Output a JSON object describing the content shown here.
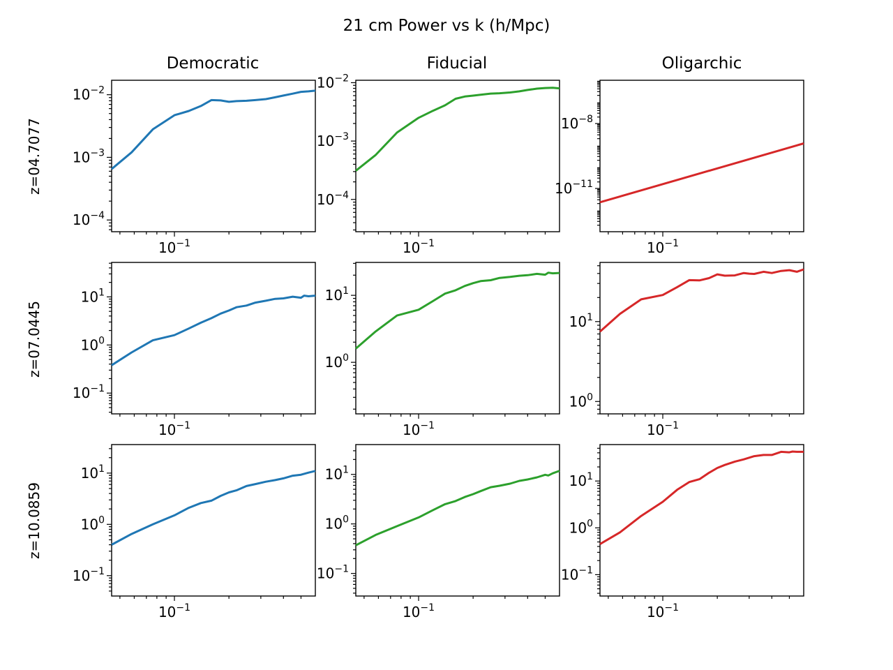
{
  "figure": {
    "title": "21 cm Power vs k (h/Mpc)",
    "columns": [
      "Democratic",
      "Fiducial",
      "Oligarchic"
    ],
    "rows": [
      "z=04.7077",
      "z=07.0445",
      "z=10.0859"
    ]
  },
  "chart_data": [
    {
      "type": "line",
      "panel": "Democratic / z=04.7077",
      "color": "#1f77b4",
      "xscale": "log",
      "yscale": "log",
      "xlim": [
        0.045,
        0.6
      ],
      "ylim": [
        6.5e-05,
        0.017
      ],
      "xticks": [
        {
          "value": 0.1,
          "label": "10^-1"
        }
      ],
      "yticks": [
        {
          "value": 0.0001,
          "label": "10^-4"
        },
        {
          "value": 0.001,
          "label": "10^-3"
        },
        {
          "value": 0.01,
          "label": "10^-2"
        }
      ],
      "x": [
        0.045,
        0.058,
        0.076,
        0.1,
        0.12,
        0.14,
        0.16,
        0.18,
        0.2,
        0.22,
        0.25,
        0.28,
        0.32,
        0.36,
        0.4,
        0.45,
        0.5,
        0.55,
        0.6
      ],
      "y": [
        0.00065,
        0.0012,
        0.0028,
        0.0047,
        0.0055,
        0.0066,
        0.0082,
        0.0081,
        0.0077,
        0.0079,
        0.008,
        0.0082,
        0.0085,
        0.0091,
        0.0097,
        0.0104,
        0.0111,
        0.0113,
        0.0116
      ]
    },
    {
      "type": "line",
      "panel": "Fiducial / z=04.7077",
      "color": "#2ca02c",
      "xscale": "log",
      "yscale": "log",
      "xlim": [
        0.045,
        0.6
      ],
      "ylim": [
        2.8e-05,
        0.011
      ],
      "xticks": [
        {
          "value": 0.1,
          "label": "10^-1"
        }
      ],
      "yticks": [
        {
          "value": 0.0001,
          "label": "10^-4"
        },
        {
          "value": 0.001,
          "label": "10^-3"
        },
        {
          "value": 0.01,
          "label": "10^-2"
        }
      ],
      "x": [
        0.045,
        0.058,
        0.076,
        0.1,
        0.12,
        0.14,
        0.16,
        0.18,
        0.2,
        0.22,
        0.25,
        0.28,
        0.32,
        0.36,
        0.4,
        0.45,
        0.5,
        0.55,
        0.6
      ],
      "y": [
        0.00031,
        0.00058,
        0.0014,
        0.0025,
        0.0033,
        0.0041,
        0.0053,
        0.0058,
        0.006,
        0.0062,
        0.0065,
        0.0066,
        0.0068,
        0.0071,
        0.0075,
        0.0079,
        0.0081,
        0.0082,
        0.008
      ]
    },
    {
      "type": "line",
      "panel": "Oligarchic / z=04.7077",
      "color": "#d62728",
      "xscale": "log",
      "yscale": "log",
      "xlim": [
        0.045,
        0.6
      ],
      "ylim": [
        1e-13,
        1e-06
      ],
      "xticks": [
        {
          "value": 0.1,
          "label": "10^-1"
        }
      ],
      "yticks": [
        {
          "value": 1e-11,
          "label": "10^-11"
        },
        {
          "value": 1e-08,
          "label": "10^-8"
        }
      ],
      "x": [
        0.045,
        0.6
      ],
      "y": [
        2.3e-12,
        1.2e-09
      ]
    },
    {
      "type": "line",
      "panel": "Democratic / z=07.0445",
      "color": "#1f77b4",
      "xscale": "log",
      "yscale": "log",
      "xlim": [
        0.045,
        0.6
      ],
      "ylim": [
        0.037,
        52
      ],
      "xticks": [
        {
          "value": 0.1,
          "label": "10^-1"
        }
      ],
      "yticks": [
        {
          "value": 0.1,
          "label": "10^-1"
        },
        {
          "value": 1,
          "label": "10^0"
        },
        {
          "value": 10,
          "label": "10^1"
        }
      ],
      "x": [
        0.045,
        0.058,
        0.076,
        0.1,
        0.12,
        0.14,
        0.16,
        0.18,
        0.2,
        0.22,
        0.25,
        0.28,
        0.32,
        0.36,
        0.4,
        0.45,
        0.5,
        0.52,
        0.55,
        0.6
      ],
      "y": [
        0.38,
        0.7,
        1.25,
        1.6,
        2.2,
        2.9,
        3.6,
        4.5,
        5.2,
        6.1,
        6.6,
        7.6,
        8.3,
        9.1,
        9.3,
        10.1,
        9.6,
        10.6,
        10.3,
        10.6
      ]
    },
    {
      "type": "line",
      "panel": "Fiducial / z=07.0445",
      "color": "#2ca02c",
      "xscale": "log",
      "yscale": "log",
      "xlim": [
        0.045,
        0.6
      ],
      "ylim": [
        0.17,
        31
      ],
      "xticks": [
        {
          "value": 0.1,
          "label": "10^-1"
        }
      ],
      "yticks": [
        {
          "value": 1,
          "label": "10^0"
        },
        {
          "value": 10,
          "label": "10^1"
        }
      ],
      "x": [
        0.045,
        0.058,
        0.076,
        0.1,
        0.12,
        0.14,
        0.16,
        0.18,
        0.2,
        0.22,
        0.25,
        0.28,
        0.32,
        0.36,
        0.4,
        0.45,
        0.5,
        0.52,
        0.55,
        0.6
      ],
      "y": [
        1.6,
        2.9,
        5.0,
        6.1,
        8.2,
        10.6,
        11.9,
        13.8,
        15.2,
        16.3,
        16.8,
        18.2,
        18.8,
        19.6,
        20.0,
        20.9,
        20.3,
        21.8,
        21.3,
        21.6
      ]
    },
    {
      "type": "line",
      "panel": "Oligarchic / z=07.0445",
      "color": "#d62728",
      "xscale": "log",
      "yscale": "log",
      "xlim": [
        0.045,
        0.6
      ],
      "ylim": [
        0.7,
        55
      ],
      "xticks": [
        {
          "value": 0.1,
          "label": "10^-1"
        }
      ],
      "yticks": [
        {
          "value": 1,
          "label": "10^0"
        },
        {
          "value": 10,
          "label": "10^1"
        }
      ],
      "x": [
        0.045,
        0.058,
        0.076,
        0.1,
        0.12,
        0.14,
        0.16,
        0.18,
        0.2,
        0.22,
        0.25,
        0.28,
        0.3,
        0.32,
        0.36,
        0.4,
        0.45,
        0.5,
        0.55,
        0.6
      ],
      "y": [
        7.5,
        12.5,
        19.0,
        21.5,
        27.0,
        33.0,
        32.8,
        35.0,
        39.0,
        37.5,
        37.8,
        40.5,
        39.8,
        39.5,
        42.0,
        40.5,
        43.0,
        44.0,
        42.0,
        45.0
      ]
    },
    {
      "type": "line",
      "panel": "Democratic / z=10.0859",
      "color": "#1f77b4",
      "xscale": "log",
      "yscale": "log",
      "xlim": [
        0.045,
        0.6
      ],
      "ylim": [
        0.04,
        36
      ],
      "xticks": [
        {
          "value": 0.1,
          "label": "10^-1"
        }
      ],
      "yticks": [
        {
          "value": 0.1,
          "label": "10^-1"
        },
        {
          "value": 1,
          "label": "10^0"
        },
        {
          "value": 10,
          "label": "10^1"
        }
      ],
      "x": [
        0.045,
        0.058,
        0.076,
        0.1,
        0.12,
        0.14,
        0.16,
        0.18,
        0.2,
        0.22,
        0.25,
        0.28,
        0.32,
        0.36,
        0.4,
        0.45,
        0.5,
        0.55,
        0.6
      ],
      "y": [
        0.4,
        0.65,
        1.0,
        1.5,
        2.1,
        2.6,
        2.9,
        3.6,
        4.2,
        4.6,
        5.6,
        6.1,
        6.8,
        7.3,
        7.9,
        8.9,
        9.3,
        10.2,
        11.0
      ]
    },
    {
      "type": "line",
      "panel": "Fiducial / z=10.0859",
      "color": "#2ca02c",
      "xscale": "log",
      "yscale": "log",
      "xlim": [
        0.045,
        0.6
      ],
      "ylim": [
        0.035,
        40
      ],
      "xticks": [
        {
          "value": 0.1,
          "label": "10^-1"
        }
      ],
      "yticks": [
        {
          "value": 0.1,
          "label": "10^-1"
        },
        {
          "value": 1,
          "label": "10^0"
        },
        {
          "value": 10,
          "label": "10^1"
        }
      ],
      "x": [
        0.045,
        0.058,
        0.076,
        0.1,
        0.12,
        0.14,
        0.16,
        0.18,
        0.2,
        0.22,
        0.25,
        0.28,
        0.32,
        0.36,
        0.4,
        0.45,
        0.5,
        0.52,
        0.55,
        0.6
      ],
      "y": [
        0.37,
        0.6,
        0.9,
        1.35,
        1.9,
        2.5,
        2.9,
        3.5,
        4.0,
        4.6,
        5.5,
        5.9,
        6.5,
        7.4,
        7.9,
        8.7,
        9.8,
        9.5,
        10.5,
        11.8
      ]
    },
    {
      "type": "line",
      "panel": "Oligarchic / z=10.0859",
      "color": "#d62728",
      "xscale": "log",
      "yscale": "log",
      "xlim": [
        0.045,
        0.6
      ],
      "ylim": [
        0.035,
        60
      ],
      "xticks": [
        {
          "value": 0.1,
          "label": "10^-1"
        }
      ],
      "yticks": [
        {
          "value": 0.1,
          "label": "10^-1"
        },
        {
          "value": 1,
          "label": "10^0"
        },
        {
          "value": 10,
          "label": "10^1"
        }
      ],
      "x": [
        0.045,
        0.058,
        0.076,
        0.1,
        0.12,
        0.14,
        0.16,
        0.18,
        0.2,
        0.22,
        0.25,
        0.28,
        0.32,
        0.36,
        0.4,
        0.45,
        0.5,
        0.52,
        0.55,
        0.6
      ],
      "y": [
        0.45,
        0.8,
        1.8,
        3.6,
        6.5,
        9.5,
        11.0,
        15.0,
        19.0,
        22.0,
        26.0,
        29.0,
        34.0,
        36.0,
        36.0,
        42.0,
        41.0,
        42.5,
        42.0,
        42.0
      ]
    }
  ]
}
